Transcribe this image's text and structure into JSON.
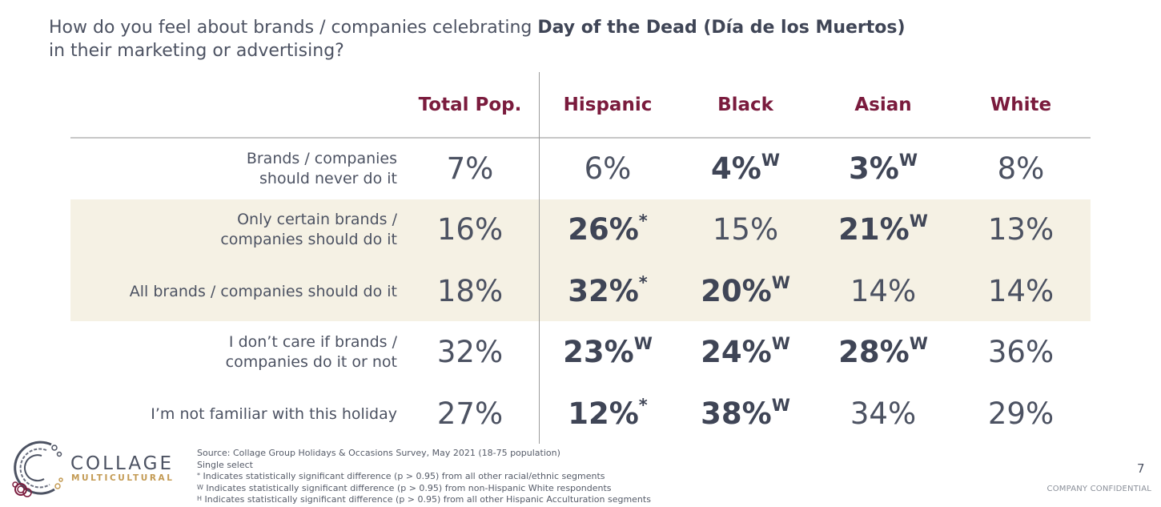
{
  "question": {
    "prefix": "How do you feel about brands / companies celebrating ",
    "bold": "Day of the Dead (Día de los Muertos)",
    "line2": "in their marketing or advertising?"
  },
  "columns": [
    "Total Pop.",
    "Hispanic",
    "Black",
    "Asian",
    "White"
  ],
  "rows": [
    {
      "label_lines": [
        "Brands / companies",
        "should never do it"
      ],
      "cells": [
        {
          "value": "7%",
          "mark": "",
          "bold": false
        },
        {
          "value": "6%",
          "mark": "",
          "bold": false
        },
        {
          "value": "4%",
          "mark": "W",
          "bold": true
        },
        {
          "value": "3%",
          "mark": "W",
          "bold": true
        },
        {
          "value": "8%",
          "mark": "",
          "bold": false
        }
      ]
    },
    {
      "label_lines": [
        "Only certain brands /",
        "companies should do it"
      ],
      "cells": [
        {
          "value": "16%",
          "mark": "",
          "bold": false
        },
        {
          "value": "26%",
          "mark": "*",
          "bold": true
        },
        {
          "value": "15%",
          "mark": "",
          "bold": false
        },
        {
          "value": "21%",
          "mark": "W",
          "bold": true
        },
        {
          "value": "13%",
          "mark": "",
          "bold": false
        }
      ]
    },
    {
      "label_lines": [
        "All brands / companies should do it"
      ],
      "cells": [
        {
          "value": "18%",
          "mark": "",
          "bold": false
        },
        {
          "value": "32%",
          "mark": "*",
          "bold": true
        },
        {
          "value": "20%",
          "mark": "W",
          "bold": true
        },
        {
          "value": "14%",
          "mark": "",
          "bold": false
        },
        {
          "value": "14%",
          "mark": "",
          "bold": false
        }
      ]
    },
    {
      "label_lines": [
        "I don’t care if brands /",
        "companies do it or not"
      ],
      "cells": [
        {
          "value": "32%",
          "mark": "",
          "bold": false
        },
        {
          "value": "23%",
          "mark": "W",
          "bold": true
        },
        {
          "value": "24%",
          "mark": "W",
          "bold": true
        },
        {
          "value": "28%",
          "mark": "W",
          "bold": true
        },
        {
          "value": "36%",
          "mark": "",
          "bold": false
        }
      ]
    },
    {
      "label_lines": [
        "I’m not familiar with this holiday"
      ],
      "cells": [
        {
          "value": "27%",
          "mark": "",
          "bold": false
        },
        {
          "value": "12%",
          "mark": "*",
          "bold": true
        },
        {
          "value": "38%",
          "mark": "W",
          "bold": true
        },
        {
          "value": "34%",
          "mark": "",
          "bold": false
        },
        {
          "value": "29%",
          "mark": "",
          "bold": false
        }
      ]
    }
  ],
  "footnotes": {
    "source": "Source: Collage Group Holidays & Occasions Survey, May 2021 (18-75 population)",
    "select": "Single select",
    "star_mark": "*",
    "star_text": " Indicates statistically significant difference (p > 0.95) from all other racial/ethnic segments",
    "w_mark": "W",
    "w_text": " Indicates statistically significant difference (p > 0.95) from non-Hispanic White respondents",
    "h_mark": "H",
    "h_text": " Indicates statistically significant difference (p > 0.95) from all other Hispanic Acculturation segments"
  },
  "page_number": "7",
  "confidential": "COMPANY CONFIDENTIAL",
  "logo": {
    "line1": "COLLAGE",
    "line2": "MULTICULTURAL",
    "colors": {
      "gray": "#4c5262",
      "gold": "#c39a53",
      "maroon": "#7a1b3d"
    }
  },
  "colors": {
    "header": "#7a1b3d",
    "band": "#f5f1e4",
    "text": "#4c5262"
  }
}
